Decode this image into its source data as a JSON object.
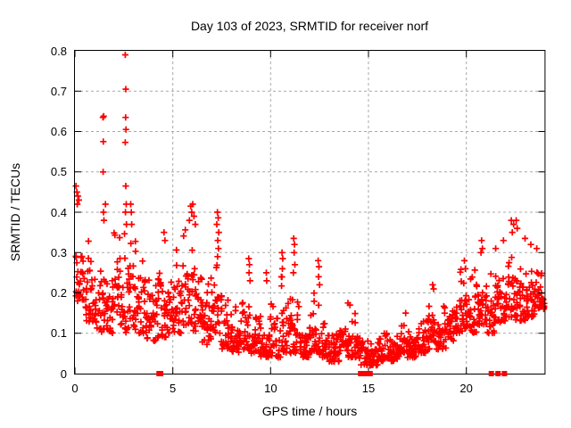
{
  "title": "Day 103 of 2023, SRMTID for receiver norf",
  "chart_data": {
    "type": "scatter",
    "title": "Day 103 of 2023, SRMTID for receiver norf",
    "xlabel": "GPS time / hours",
    "ylabel": "SRMTID / TECUs",
    "xlim": [
      0,
      24
    ],
    "ylim": [
      0,
      0.8
    ],
    "xticks": [
      0,
      5,
      10,
      15,
      20
    ],
    "yticks": [
      "0",
      "0.1",
      "0.2",
      "0.3",
      "0.4",
      "0.5",
      "0.6",
      "0.7",
      "0.8"
    ],
    "grid": true,
    "legend": "none",
    "background": "#ffffff",
    "frame_color": "#000000",
    "grid_color": "#a8a8a8",
    "marker": {
      "shape": "plus",
      "color": "#ff0000",
      "size": 9
    },
    "axis_marker": {
      "shape": "filled-square",
      "color": "#ff0000",
      "size": 6
    },
    "bin_hours": 0.5,
    "points_per_bin": 30,
    "seed": 42,
    "density_bins": [
      [
        0.18,
        0.42
      ],
      [
        0.12,
        0.36
      ],
      [
        0.1,
        0.38
      ],
      [
        0.1,
        0.4
      ],
      [
        0.12,
        0.38
      ],
      [
        0.1,
        0.42
      ],
      [
        0.1,
        0.4
      ],
      [
        0.08,
        0.3
      ],
      [
        0.08,
        0.33
      ],
      [
        0.09,
        0.32
      ],
      [
        0.1,
        0.36
      ],
      [
        0.12,
        0.42
      ],
      [
        0.1,
        0.4
      ],
      [
        0.07,
        0.26
      ],
      [
        0.08,
        0.33
      ],
      [
        0.06,
        0.22
      ],
      [
        0.05,
        0.2
      ],
      [
        0.06,
        0.24
      ],
      [
        0.05,
        0.19
      ],
      [
        0.04,
        0.16
      ],
      [
        0.04,
        0.2
      ],
      [
        0.05,
        0.26
      ],
      [
        0.05,
        0.25
      ],
      [
        0.04,
        0.16
      ],
      [
        0.05,
        0.23
      ],
      [
        0.04,
        0.16
      ],
      [
        0.03,
        0.14
      ],
      [
        0.05,
        0.17
      ],
      [
        0.04,
        0.16
      ],
      [
        0.02,
        0.11
      ],
      [
        0.02,
        0.1
      ],
      [
        0.03,
        0.13
      ],
      [
        0.03,
        0.12
      ],
      [
        0.04,
        0.14
      ],
      [
        0.04,
        0.13
      ],
      [
        0.05,
        0.15
      ],
      [
        0.06,
        0.2
      ],
      [
        0.06,
        0.19
      ],
      [
        0.08,
        0.22
      ],
      [
        0.1,
        0.27
      ],
      [
        0.1,
        0.28
      ],
      [
        0.12,
        0.3
      ],
      [
        0.1,
        0.29
      ],
      [
        0.12,
        0.32
      ],
      [
        0.14,
        0.35
      ],
      [
        0.13,
        0.33
      ],
      [
        0.14,
        0.3
      ],
      [
        0.16,
        0.3
      ]
    ],
    "outliers": [
      [
        0.05,
        0.465
      ],
      [
        0.1,
        0.45
      ],
      [
        0.15,
        0.44
      ],
      [
        0.2,
        0.43
      ],
      [
        0.12,
        0.42
      ],
      [
        1.43,
        0.635
      ],
      [
        1.47,
        0.638
      ],
      [
        1.45,
        0.575
      ],
      [
        1.44,
        0.5
      ],
      [
        1.56,
        0.42
      ],
      [
        1.46,
        0.4
      ],
      [
        1.48,
        0.38
      ],
      [
        2.57,
        0.79
      ],
      [
        2.6,
        0.705
      ],
      [
        2.59,
        0.635
      ],
      [
        2.61,
        0.605
      ],
      [
        2.57,
        0.573
      ],
      [
        2.6,
        0.465
      ],
      [
        2.62,
        0.42
      ],
      [
        2.58,
        0.4
      ],
      [
        2.63,
        0.37
      ],
      [
        2.85,
        0.42
      ],
      [
        2.88,
        0.4
      ],
      [
        2.9,
        0.37
      ],
      [
        4.55,
        0.35
      ],
      [
        4.6,
        0.33
      ],
      [
        5.85,
        0.38
      ],
      [
        5.92,
        0.415
      ],
      [
        5.97,
        0.4
      ],
      [
        6.02,
        0.42
      ],
      [
        6.08,
        0.39
      ],
      [
        6.15,
        0.37
      ],
      [
        7.25,
        0.37
      ],
      [
        7.28,
        0.4
      ],
      [
        7.29,
        0.29
      ],
      [
        7.3,
        0.33
      ],
      [
        7.32,
        0.386
      ],
      [
        7.33,
        0.31
      ],
      [
        7.35,
        0.35
      ],
      [
        8.88,
        0.285
      ],
      [
        8.9,
        0.25
      ],
      [
        8.92,
        0.27
      ],
      [
        8.95,
        0.23
      ],
      [
        9.78,
        0.25
      ],
      [
        9.8,
        0.23
      ],
      [
        10.55,
        0.24
      ],
      [
        10.58,
        0.3
      ],
      [
        10.6,
        0.26
      ],
      [
        10.62,
        0.285
      ],
      [
        11.16,
        0.25
      ],
      [
        11.18,
        0.335
      ],
      [
        11.2,
        0.3
      ],
      [
        11.22,
        0.32
      ],
      [
        11.24,
        0.27
      ],
      [
        12.43,
        0.28
      ],
      [
        12.45,
        0.24
      ],
      [
        12.47,
        0.265
      ],
      [
        12.5,
        0.22
      ],
      [
        13.95,
        0.175
      ],
      [
        14.05,
        0.17
      ],
      [
        16.9,
        0.15
      ],
      [
        18.28,
        0.22
      ],
      [
        18.33,
        0.21
      ],
      [
        19.9,
        0.28
      ],
      [
        19.95,
        0.26
      ],
      [
        20.75,
        0.3
      ],
      [
        20.78,
        0.33
      ],
      [
        20.82,
        0.31
      ],
      [
        21.5,
        0.31
      ],
      [
        21.9,
        0.33
      ],
      [
        22.3,
        0.38
      ],
      [
        22.35,
        0.35
      ],
      [
        22.42,
        0.37
      ],
      [
        22.55,
        0.38
      ],
      [
        22.6,
        0.36
      ],
      [
        23.0,
        0.335
      ],
      [
        23.3,
        0.32
      ],
      [
        23.6,
        0.31
      ]
    ],
    "zero_markers": [
      4.3,
      4.38,
      14.6,
      14.67,
      14.74,
      14.81,
      15.0,
      15.08,
      21.28,
      21.62,
      21.95
    ]
  }
}
